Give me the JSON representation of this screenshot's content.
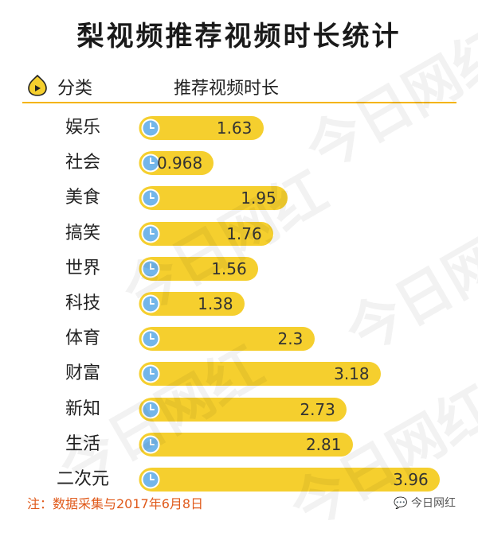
{
  "title": "梨视频推荐视频时长统计",
  "header": {
    "col_category": "分类",
    "col_length": "推荐视频时长"
  },
  "footnote": "注：数据采集与2017年6月8日",
  "brand": "今日网红",
  "watermark": "今日网红",
  "colors": {
    "bar": "#f5cf2e",
    "accent": "#f4b400",
    "footnote": "#e05a1b",
    "clock": "#5aa9e6"
  },
  "chart_data": {
    "type": "bar",
    "orientation": "horizontal",
    "title": "梨视频推荐视频时长统计",
    "categories": [
      "娱乐",
      "社会",
      "美食",
      "搞笑",
      "世界",
      "科技",
      "体育",
      "财富",
      "新知",
      "生活",
      "二次元"
    ],
    "values": [
      1.63,
      0.968,
      1.95,
      1.76,
      1.56,
      1.38,
      2.3,
      3.18,
      2.73,
      2.81,
      3.96
    ],
    "value_labels": [
      "1.63",
      "0.968",
      "1.95",
      "1.76",
      "1.56",
      "1.38",
      "2.3",
      "3.18",
      "2.73",
      "2.81",
      "3.96"
    ],
    "xlim": [
      0,
      4
    ],
    "grid": false,
    "legend": "none"
  }
}
